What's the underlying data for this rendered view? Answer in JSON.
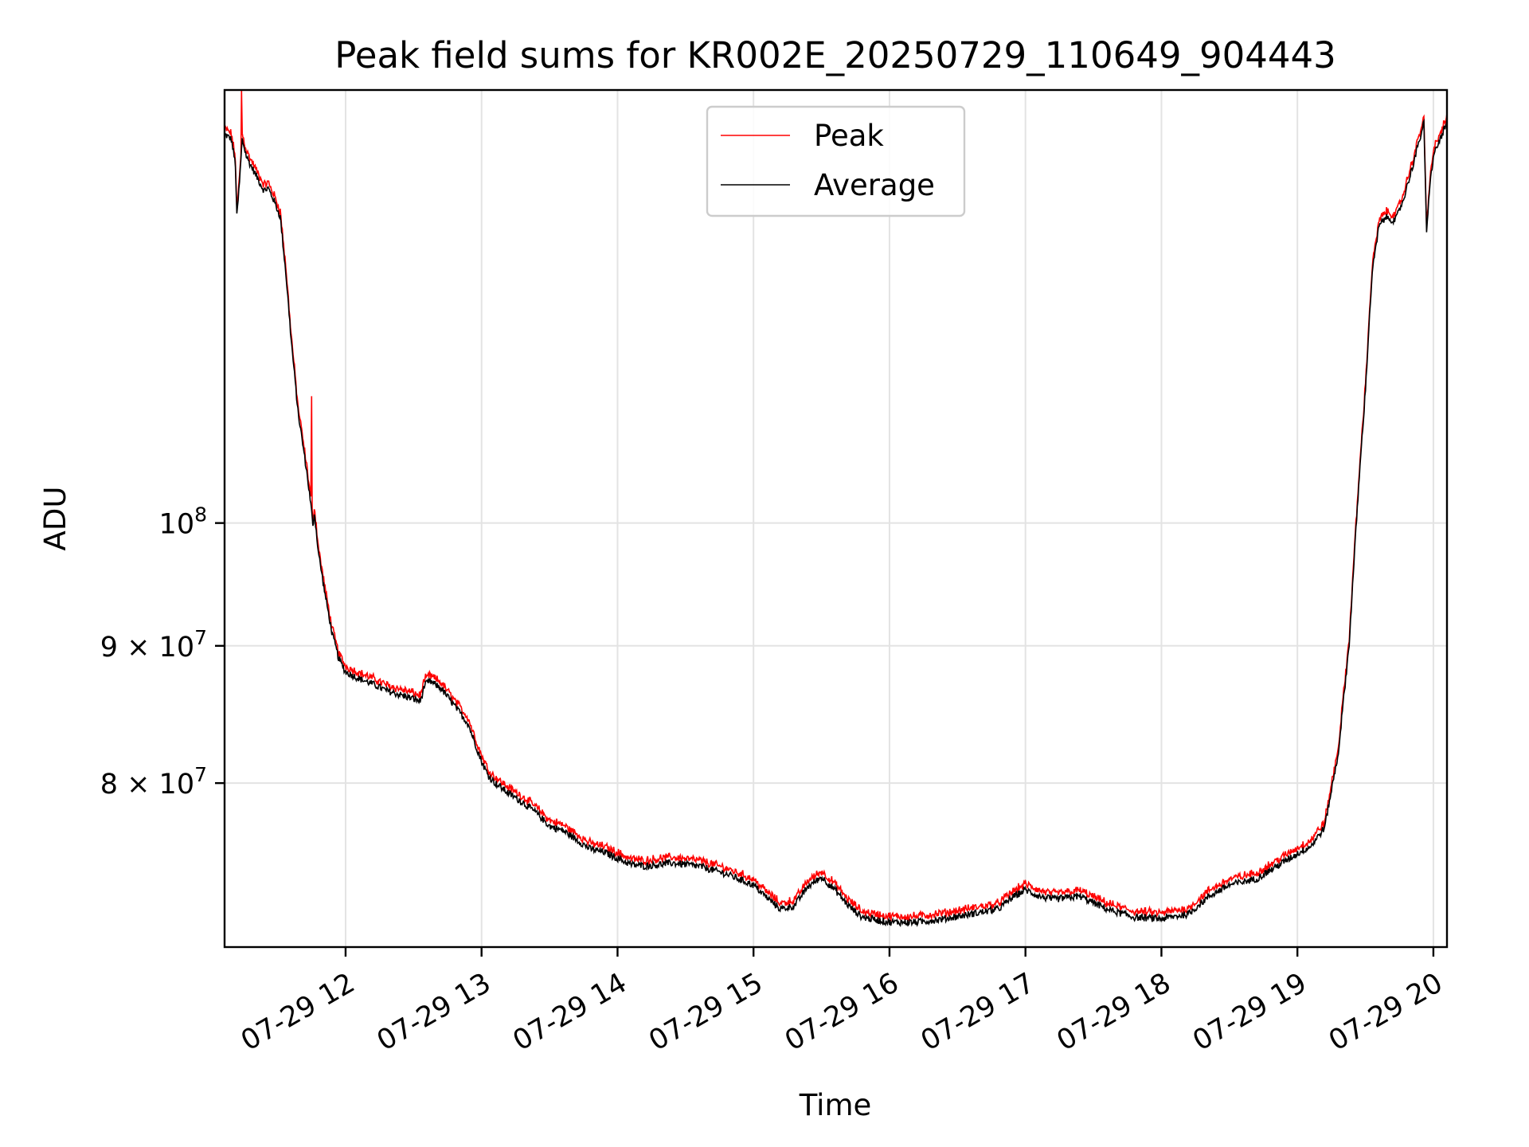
{
  "chart_data": {
    "type": "line",
    "title": "Peak field sums for KR002E_20250729_110649_904443",
    "xlabel": "Time",
    "ylabel": "ADU",
    "y_scale": "log",
    "grid": true,
    "legend_position": "top-center",
    "xlim_hours": [
      11.11,
      20.1
    ],
    "ylim": [
      69500000,
      145000000
    ],
    "x_ticks": [
      {
        "hour": 12,
        "label": "07-29 12"
      },
      {
        "hour": 13,
        "label": "07-29 13"
      },
      {
        "hour": 14,
        "label": "07-29 14"
      },
      {
        "hour": 15,
        "label": "07-29 15"
      },
      {
        "hour": 16,
        "label": "07-29 16"
      },
      {
        "hour": 17,
        "label": "07-29 17"
      },
      {
        "hour": 18,
        "label": "07-29 18"
      },
      {
        "hour": 19,
        "label": "07-29 19"
      },
      {
        "hour": 20,
        "label": "07-29 20"
      }
    ],
    "y_ticks": [
      {
        "value": 100000000,
        "base": "10",
        "coef": "",
        "exp": "8"
      },
      {
        "value": 90000000,
        "base": "10",
        "coef": "9",
        "exp": "7"
      },
      {
        "value": 80000000,
        "base": "10",
        "coef": "8",
        "exp": "7"
      }
    ],
    "series": [
      {
        "name": "Peak",
        "color": "#ff0000",
        "spikes": [
          {
            "hour": 11.235,
            "value": 145000000
          },
          {
            "hour": 11.75,
            "value": 111500000
          },
          {
            "hour": 13.03,
            "value": 81500000
          }
        ]
      },
      {
        "name": "Average",
        "color": "#000000",
        "points": [
          [
            11.11,
            139600000
          ],
          [
            11.16,
            139000000
          ],
          [
            11.19,
            136000000
          ],
          [
            11.2,
            130000000
          ],
          [
            11.22,
            134000000
          ],
          [
            11.24,
            139000000
          ],
          [
            11.27,
            137000000
          ],
          [
            11.3,
            136000000
          ],
          [
            11.35,
            134500000
          ],
          [
            11.4,
            133000000
          ],
          [
            11.43,
            133300000
          ],
          [
            11.47,
            132000000
          ],
          [
            11.52,
            130000000
          ],
          [
            11.56,
            124000000
          ],
          [
            11.6,
            117000000
          ],
          [
            11.65,
            110000000
          ],
          [
            11.72,
            104000000
          ],
          [
            11.75,
            101000000
          ],
          [
            11.76,
            99500000
          ],
          [
            11.77,
            101000000
          ],
          [
            11.8,
            97500000
          ],
          [
            11.85,
            94000000
          ],
          [
            11.9,
            91000000
          ],
          [
            11.95,
            89000000
          ],
          [
            12.0,
            88000000
          ],
          [
            12.1,
            87500000
          ],
          [
            12.2,
            87100000
          ],
          [
            12.3,
            86600000
          ],
          [
            12.4,
            86300000
          ],
          [
            12.5,
            86000000
          ],
          [
            12.55,
            85800000
          ],
          [
            12.58,
            87000000
          ],
          [
            12.62,
            87300000
          ],
          [
            12.7,
            86800000
          ],
          [
            12.8,
            85500000
          ],
          [
            12.9,
            84200000
          ],
          [
            13.0,
            81500000
          ],
          [
            13.05,
            80500000
          ],
          [
            13.1,
            80000000
          ],
          [
            13.2,
            79300000
          ],
          [
            13.3,
            78700000
          ],
          [
            13.4,
            78000000
          ],
          [
            13.5,
            77100000
          ],
          [
            13.6,
            76800000
          ],
          [
            13.7,
            76200000
          ],
          [
            13.8,
            75600000
          ],
          [
            13.9,
            75400000
          ],
          [
            14.0,
            75000000
          ],
          [
            14.1,
            74600000
          ],
          [
            14.2,
            74500000
          ],
          [
            14.4,
            74700000
          ],
          [
            14.6,
            74500000
          ],
          [
            14.8,
            74000000
          ],
          [
            15.0,
            73300000
          ],
          [
            15.1,
            72500000
          ],
          [
            15.2,
            71800000
          ],
          [
            15.3,
            72000000
          ],
          [
            15.4,
            73200000
          ],
          [
            15.5,
            73800000
          ],
          [
            15.6,
            73000000
          ],
          [
            15.7,
            72000000
          ],
          [
            15.8,
            71300000
          ],
          [
            16.0,
            71000000
          ],
          [
            16.2,
            71000000
          ],
          [
            16.4,
            71200000
          ],
          [
            16.6,
            71500000
          ],
          [
            16.8,
            71800000
          ],
          [
            16.9,
            72500000
          ],
          [
            17.0,
            73000000
          ],
          [
            17.1,
            72600000
          ],
          [
            17.2,
            72400000
          ],
          [
            17.4,
            72600000
          ],
          [
            17.6,
            71800000
          ],
          [
            17.8,
            71300000
          ],
          [
            18.0,
            71200000
          ],
          [
            18.2,
            71500000
          ],
          [
            18.35,
            72600000
          ],
          [
            18.5,
            73300000
          ],
          [
            18.7,
            73700000
          ],
          [
            18.85,
            74500000
          ],
          [
            19.0,
            75300000
          ],
          [
            19.1,
            75800000
          ],
          [
            19.2,
            77000000
          ],
          [
            19.3,
            82000000
          ],
          [
            19.38,
            90000000
          ],
          [
            19.45,
            103000000
          ],
          [
            19.5,
            112000000
          ],
          [
            19.55,
            124000000
          ],
          [
            19.6,
            129000000
          ],
          [
            19.65,
            130000000
          ],
          [
            19.72,
            129600000
          ],
          [
            19.78,
            132000000
          ],
          [
            19.85,
            136000000
          ],
          [
            19.9,
            139000000
          ],
          [
            19.93,
            141000000
          ],
          [
            19.95,
            128000000
          ],
          [
            19.97,
            133000000
          ],
          [
            20.0,
            137000000
          ],
          [
            20.05,
            139000000
          ],
          [
            20.1,
            141000000
          ]
        ]
      }
    ]
  }
}
